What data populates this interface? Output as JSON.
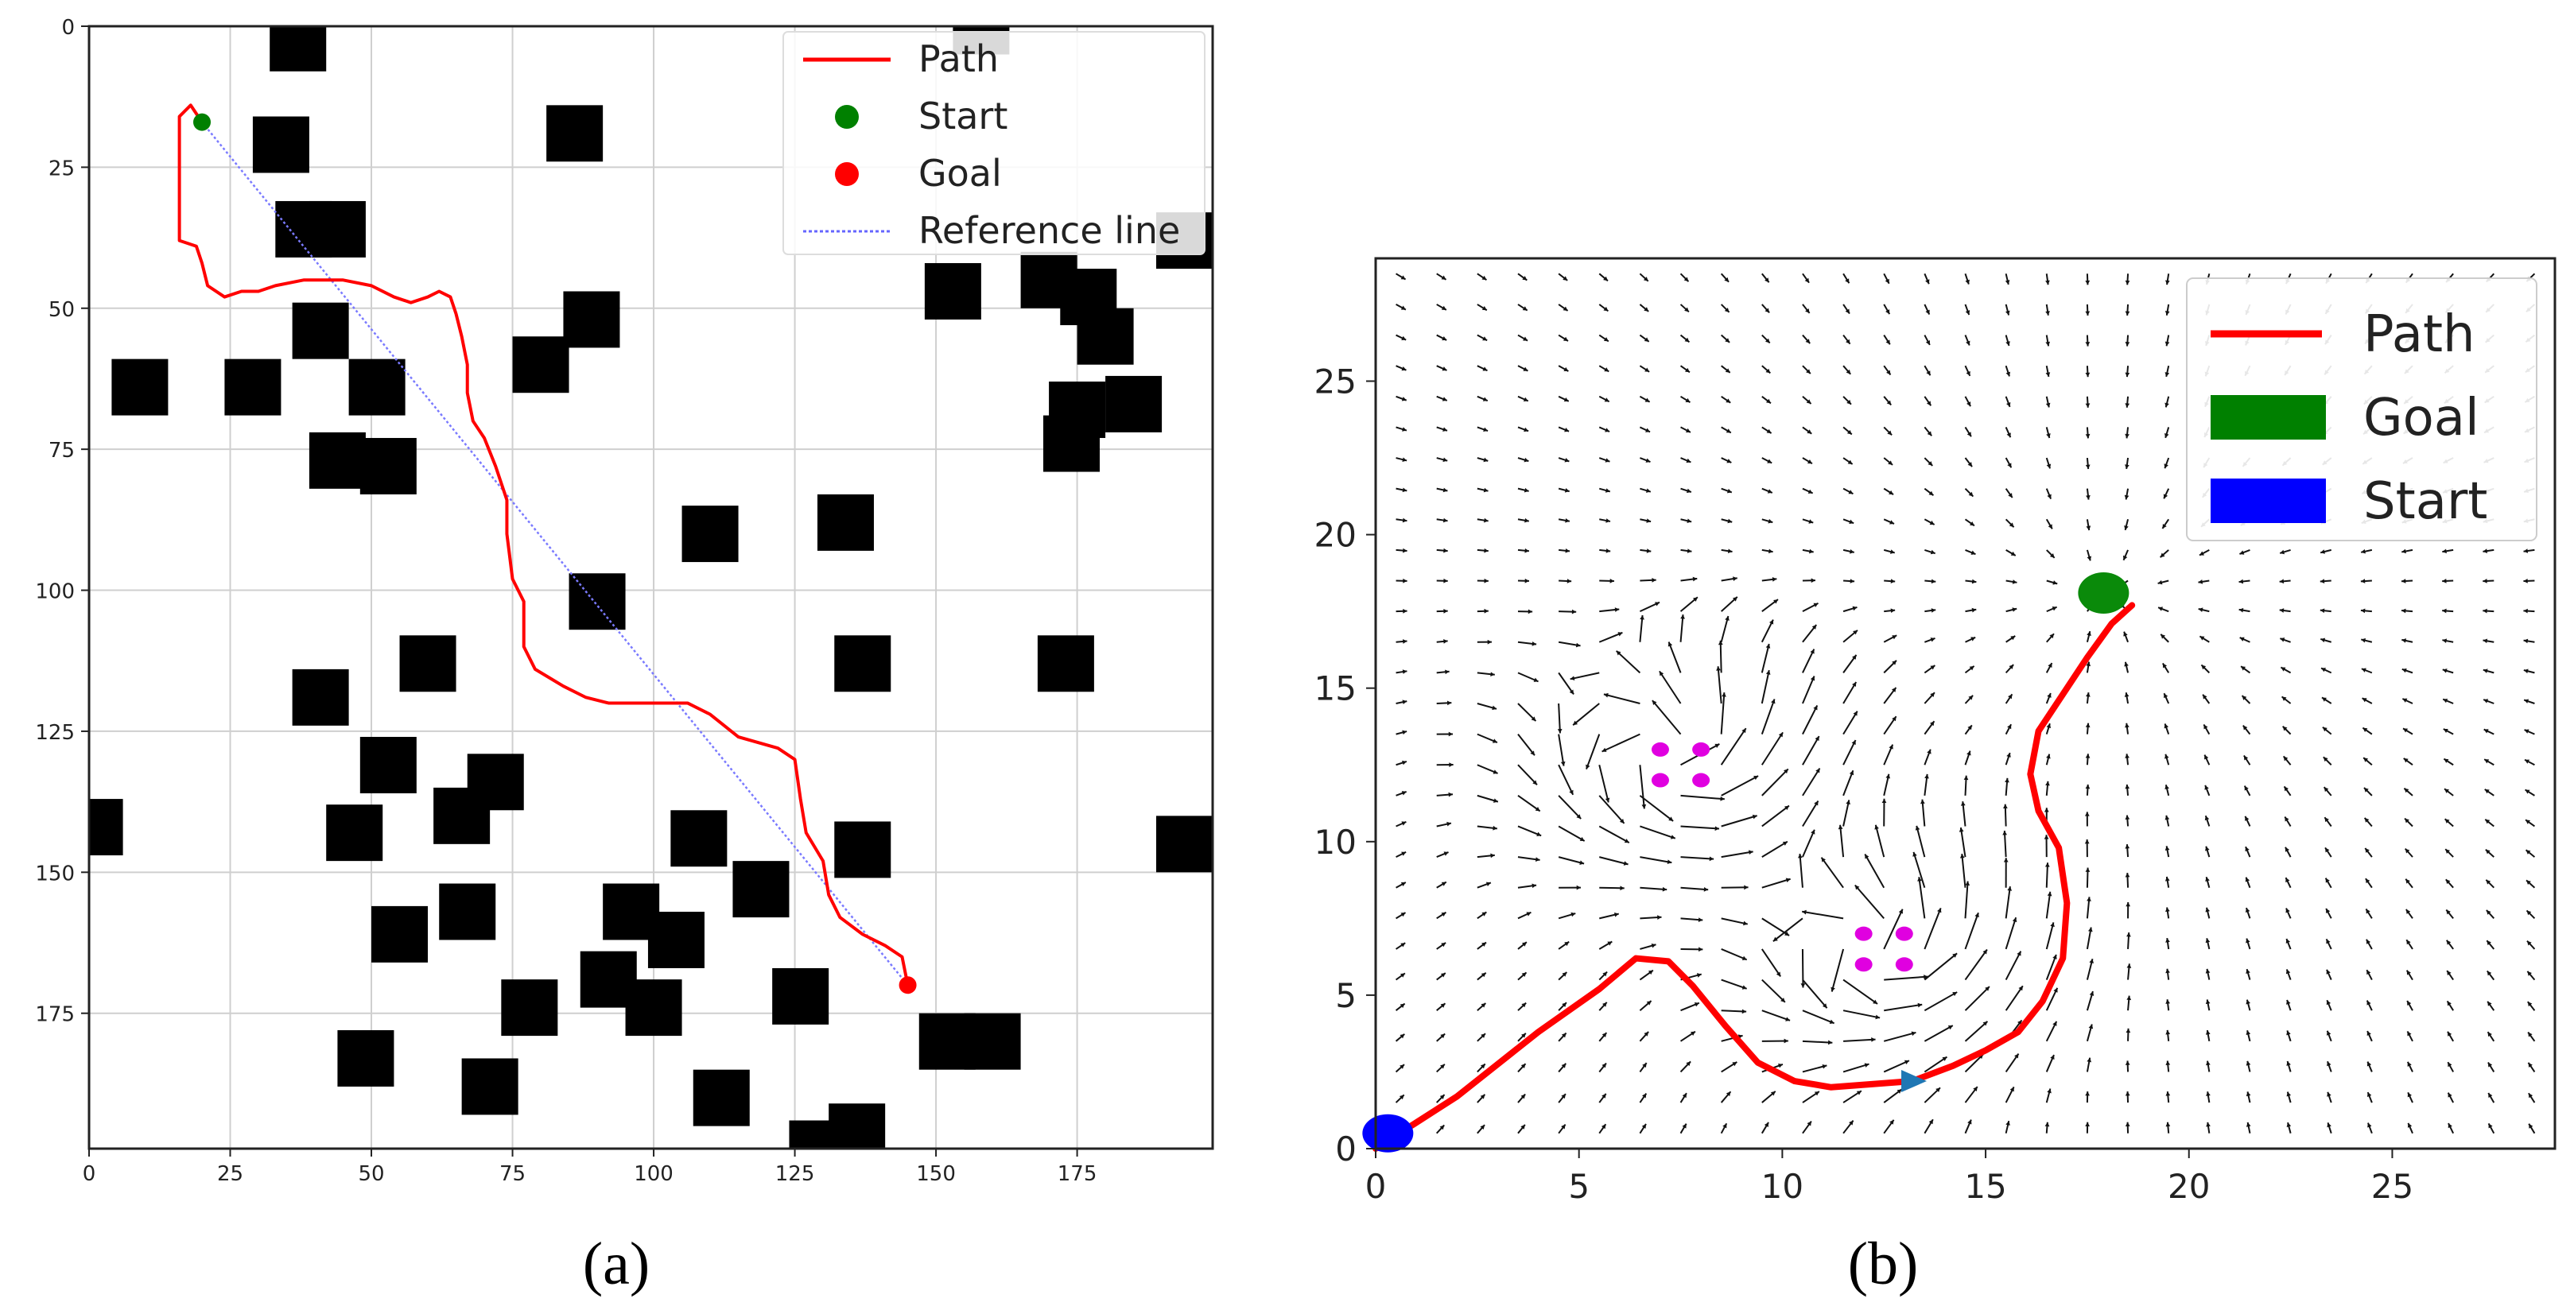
{
  "figure": {
    "caption_a": "(a)",
    "caption_b": "(b)"
  },
  "chart_data": [
    {
      "type": "line",
      "panel": "a",
      "xlim": [
        0,
        199
      ],
      "ylim": [
        199,
        0
      ],
      "y_inverted": true,
      "grid": true,
      "xticks": [
        0,
        25,
        50,
        75,
        100,
        125,
        150,
        175
      ],
      "yticks": [
        0,
        25,
        50,
        75,
        100,
        125,
        150,
        175
      ],
      "legend": {
        "placement": "top-right",
        "entries": [
          {
            "label": "Path",
            "color": "#ff0000",
            "kind": "line"
          },
          {
            "label": "Start",
            "color": "#008000",
            "kind": "dot"
          },
          {
            "label": "Goal",
            "color": "#ff0000",
            "kind": "dot"
          },
          {
            "label": "Reference line",
            "color": "#6666ff",
            "kind": "dotted"
          }
        ]
      },
      "start": [
        20,
        17
      ],
      "goal": [
        145,
        170
      ],
      "reference_line": [
        [
          20,
          17
        ],
        [
          145,
          170
        ]
      ],
      "path": [
        [
          20,
          17
        ],
        [
          18,
          14
        ],
        [
          16,
          16
        ],
        [
          16,
          30
        ],
        [
          16,
          38
        ],
        [
          19,
          39
        ],
        [
          20,
          42
        ],
        [
          21,
          46
        ],
        [
          24,
          48
        ],
        [
          27,
          47
        ],
        [
          30,
          47
        ],
        [
          33,
          46
        ],
        [
          38,
          45
        ],
        [
          45,
          45
        ],
        [
          50,
          46
        ],
        [
          54,
          48
        ],
        [
          57,
          49
        ],
        [
          60,
          48
        ],
        [
          62,
          47
        ],
        [
          64,
          48
        ],
        [
          65,
          51
        ],
        [
          66,
          55
        ],
        [
          67,
          60
        ],
        [
          67,
          65
        ],
        [
          68,
          70
        ],
        [
          70,
          73
        ],
        [
          72,
          78
        ],
        [
          74,
          84
        ],
        [
          74,
          90
        ],
        [
          75,
          98
        ],
        [
          77,
          102
        ],
        [
          77,
          110
        ],
        [
          79,
          114
        ],
        [
          84,
          117
        ],
        [
          88,
          119
        ],
        [
          92,
          120
        ],
        [
          100,
          120
        ],
        [
          106,
          120
        ],
        [
          110,
          122
        ],
        [
          115,
          126
        ],
        [
          122,
          128
        ],
        [
          125,
          130
        ],
        [
          126,
          137
        ],
        [
          127,
          143
        ],
        [
          130,
          148
        ],
        [
          131,
          154
        ],
        [
          133,
          158
        ],
        [
          137,
          161
        ],
        [
          141,
          163
        ],
        [
          144,
          165
        ],
        [
          145,
          170
        ]
      ],
      "obstacles": [
        [
          37,
          3
        ],
        [
          34,
          21
        ],
        [
          86,
          19
        ],
        [
          38,
          36
        ],
        [
          44,
          36
        ],
        [
          41,
          54
        ],
        [
          51,
          64
        ],
        [
          29,
          64
        ],
        [
          9,
          64
        ],
        [
          89,
          52
        ],
        [
          80,
          60
        ],
        [
          44,
          77
        ],
        [
          53,
          78
        ],
        [
          110,
          90
        ],
        [
          134,
          88
        ],
        [
          90,
          102
        ],
        [
          60,
          113
        ],
        [
          137,
          113
        ],
        [
          173,
          113
        ],
        [
          41,
          119
        ],
        [
          53,
          131
        ],
        [
          72,
          134
        ],
        [
          66,
          140
        ],
        [
          47,
          143
        ],
        [
          1,
          142
        ],
        [
          108,
          144
        ],
        [
          137,
          146
        ],
        [
          194,
          145
        ],
        [
          119,
          153
        ],
        [
          55,
          161
        ],
        [
          67,
          157
        ],
        [
          96,
          157
        ],
        [
          104,
          162
        ],
        [
          92,
          169
        ],
        [
          126,
          172
        ],
        [
          100,
          174
        ],
        [
          78,
          174
        ],
        [
          160,
          180
        ],
        [
          49,
          183
        ],
        [
          71,
          188
        ],
        [
          112,
          190
        ],
        [
          136,
          196
        ],
        [
          129,
          199
        ],
        [
          152,
          180
        ],
        [
          158,
          0
        ],
        [
          170,
          45
        ],
        [
          177,
          48
        ],
        [
          180,
          55
        ],
        [
          175,
          68
        ],
        [
          185,
          67
        ],
        [
          174,
          74
        ],
        [
          153,
          47
        ],
        [
          194,
          38
        ]
      ]
    },
    {
      "type": "line",
      "panel": "b",
      "title": "",
      "xlim": [
        0,
        29
      ],
      "ylim": [
        0,
        29
      ],
      "grid": false,
      "xticks": [
        0,
        5,
        10,
        15,
        20,
        25
      ],
      "yticks": [
        0,
        5,
        10,
        15,
        20,
        25
      ],
      "legend": {
        "placement": "top-right",
        "entries": [
          {
            "label": "Path",
            "color": "#ff0000",
            "kind": "line"
          },
          {
            "label": "Goal",
            "color": "#008000",
            "kind": "patch"
          },
          {
            "label": "Start",
            "color": "#0000ff",
            "kind": "patch"
          }
        ]
      },
      "start": [
        0.3,
        0.5
      ],
      "goal": [
        17.9,
        18.1
      ],
      "path": [
        [
          0,
          0
        ],
        [
          2,
          1.7
        ],
        [
          4,
          3.8
        ],
        [
          5.5,
          5.2
        ],
        [
          6.4,
          6.2
        ],
        [
          7.2,
          6.1
        ],
        [
          7.8,
          5.3
        ],
        [
          8.6,
          4
        ],
        [
          9.4,
          2.8
        ],
        [
          10.3,
          2.2
        ],
        [
          11.2,
          2
        ],
        [
          12.2,
          2.1
        ],
        [
          13.2,
          2.2
        ],
        [
          14.2,
          2.7
        ],
        [
          15,
          3.2
        ],
        [
          15.8,
          3.8
        ],
        [
          16.4,
          4.8
        ],
        [
          16.9,
          6.2
        ],
        [
          17,
          8
        ],
        [
          16.8,
          9.8
        ],
        [
          16.3,
          11
        ],
        [
          16.1,
          12.2
        ],
        [
          16.3,
          13.6
        ],
        [
          16.9,
          14.8
        ],
        [
          17.5,
          16
        ],
        [
          18.1,
          17.1
        ],
        [
          18.6,
          17.7
        ]
      ],
      "waypoint_marker": [
        13.2,
        2.2
      ],
      "obstacle_markers": [
        [
          7,
          13
        ],
        [
          8,
          13
        ],
        [
          7,
          12
        ],
        [
          8,
          12
        ],
        [
          12,
          7
        ],
        [
          13,
          7
        ],
        [
          12,
          6
        ],
        [
          13,
          6
        ]
      ],
      "vortex_centers": [
        [
          7.5,
          12.5
        ],
        [
          12.5,
          6.5
        ]
      ]
    }
  ]
}
